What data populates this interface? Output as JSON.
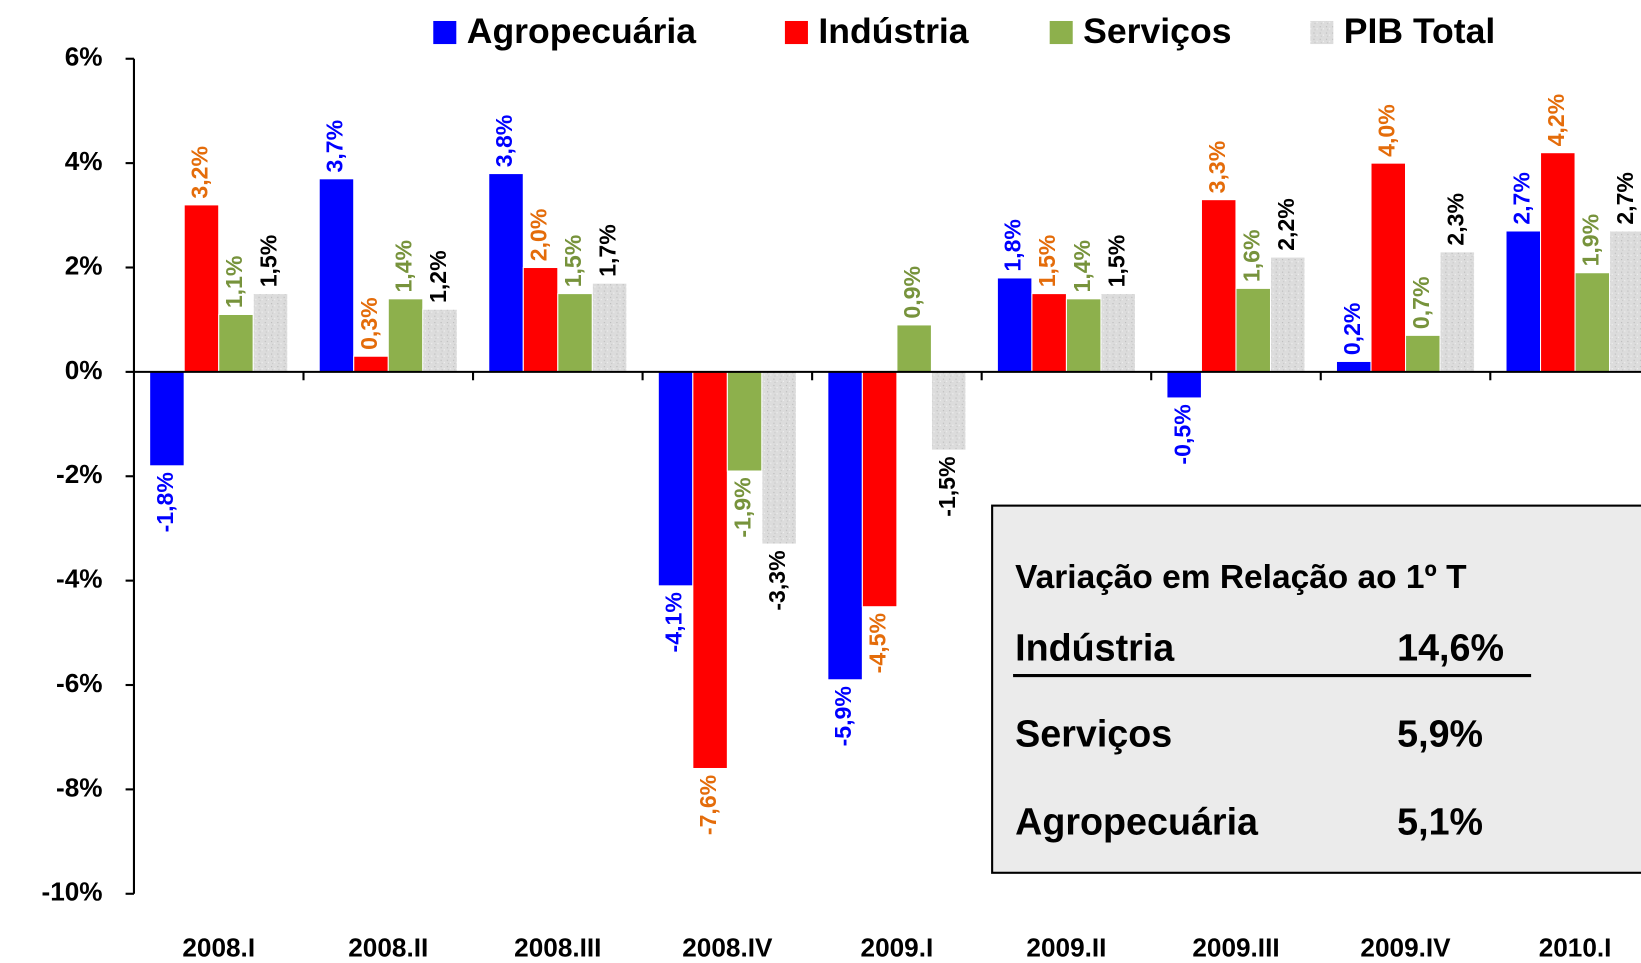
{
  "chart_data": {
    "type": "bar",
    "categories": [
      "2008.I",
      "2008.II",
      "2008.III",
      "2008.IV",
      "2009.I",
      "2009.II",
      "2009.III",
      "2009.IV",
      "2010.I"
    ],
    "series": [
      {
        "name": "Agropecuária",
        "color": "#0000ff",
        "label_color": "#0000ff",
        "values": [
          -1.8,
          3.7,
          3.8,
          -4.1,
          -5.9,
          1.8,
          -0.5,
          0.2,
          2.7
        ],
        "value_labels": [
          "-1,8%",
          "3,7%",
          "3,8%",
          "-4,1%",
          "-5,9%",
          "1,8%",
          "-0,5%",
          "0,2%",
          "2,7%"
        ]
      },
      {
        "name": "Indústria",
        "color": "#ff0000",
        "label_color": "#e46c0a",
        "values": [
          3.2,
          0.3,
          2.0,
          -7.6,
          -4.5,
          1.5,
          3.3,
          4.0,
          4.2
        ],
        "value_labels": [
          "3,2%",
          "0,3%",
          "2,0%",
          "-7,6%",
          "-4,5%",
          "1,5%",
          "3,3%",
          "4,0%",
          "4,2%"
        ]
      },
      {
        "name": "Serviços",
        "color": "#8db04c",
        "label_color": "#77933c",
        "values": [
          1.1,
          1.4,
          1.5,
          -1.9,
          0.9,
          1.4,
          1.6,
          0.7,
          1.9
        ],
        "value_labels": [
          "1,1%",
          "1,4%",
          "1,5%",
          "-1,9%",
          "0,9%",
          "1,4%",
          "1,6%",
          "0,7%",
          "1,9%"
        ]
      },
      {
        "name": "PIB Total",
        "color": "#dcdcdc",
        "label_color": "#000000",
        "values": [
          1.5,
          1.2,
          1.7,
          -3.3,
          -1.5,
          1.5,
          2.2,
          2.3,
          2.7
        ],
        "value_labels": [
          "1,5%",
          "1,2%",
          "1,7%",
          "-3,3%",
          "-1,5%",
          "1,5%",
          "2,2%",
          "2,3%",
          "2,7%"
        ]
      }
    ],
    "ylim": [
      -10,
      6
    ],
    "yticks": [
      {
        "value": -10,
        "label": "-10%"
      },
      {
        "value": -8,
        "label": "-8%"
      },
      {
        "value": -6,
        "label": "-6%"
      },
      {
        "value": -4,
        "label": "-4%"
      },
      {
        "value": -2,
        "label": "-2%"
      },
      {
        "value": 0,
        "label": "0%"
      },
      {
        "value": 2,
        "label": "2%"
      },
      {
        "value": 4,
        "label": "4%"
      },
      {
        "value": 6,
        "label": "6%"
      }
    ],
    "grid": false,
    "legend": "top"
  },
  "inset": {
    "title": "Variação em Relação ao 1º T",
    "rows": [
      [
        "Indústria",
        "14,6%"
      ],
      [
        "Serviços",
        "5,9%"
      ],
      [
        "Agropecuária",
        "5,1%"
      ]
    ]
  }
}
